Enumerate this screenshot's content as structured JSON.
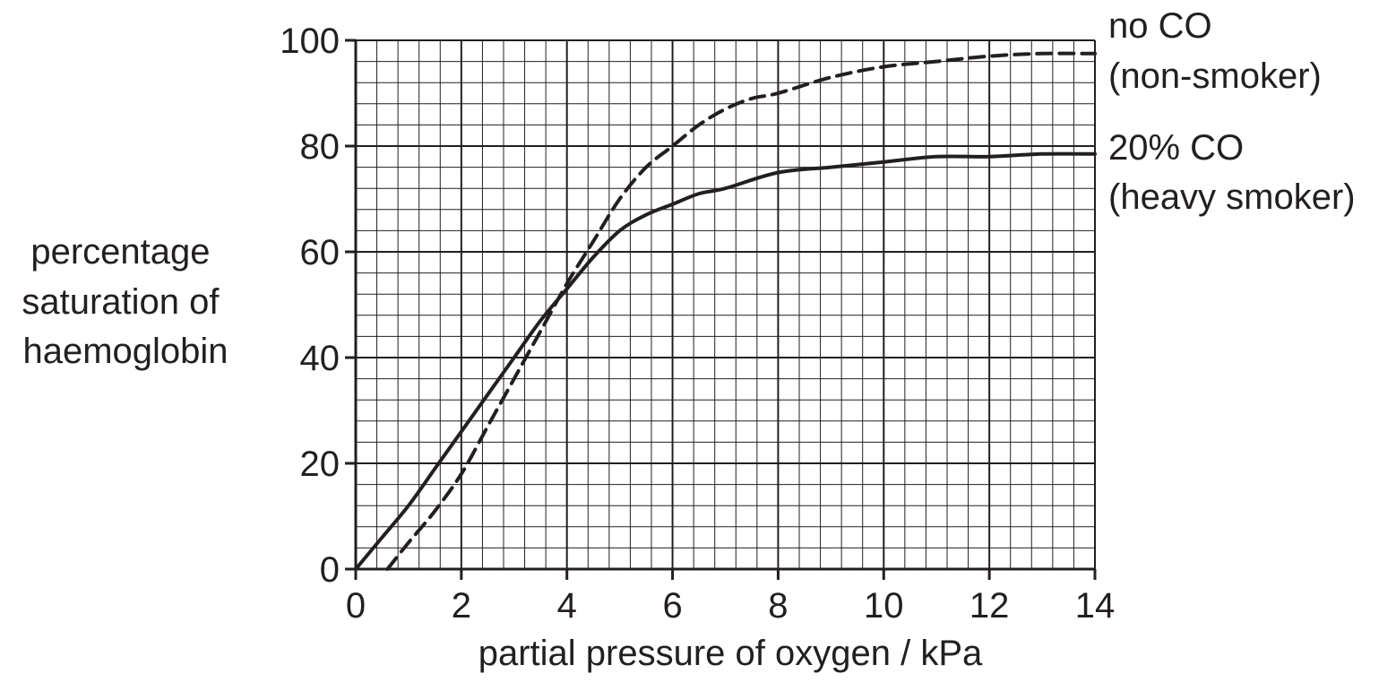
{
  "chart_data": {
    "type": "line",
    "title": "",
    "xlabel": "partial pressure of oxygen / kPa",
    "ylabel_lines": [
      "percentage",
      "saturation of",
      "haemoglobin"
    ],
    "xlim": [
      0,
      14
    ],
    "ylim": [
      0,
      100
    ],
    "x_ticks": [
      0,
      2,
      4,
      6,
      8,
      10,
      12,
      14
    ],
    "y_ticks": [
      0,
      20,
      40,
      60,
      80,
      100
    ],
    "x_tick_labels": [
      "0",
      "2",
      "4",
      "6",
      "8",
      "10",
      "12",
      "14"
    ],
    "y_tick_labels": [
      "0",
      "20",
      "40",
      "60",
      "80",
      "100"
    ],
    "x_minor_step": 0.4,
    "y_minor_step": 4,
    "grid": true,
    "series": [
      {
        "name_lines": [
          "no CO",
          "(non-smoker)"
        ],
        "style": "dashed",
        "x": [
          0.6,
          1.0,
          1.5,
          2.0,
          2.5,
          3.0,
          3.5,
          4.0,
          4.5,
          5.0,
          5.5,
          6.0,
          6.5,
          7.0,
          7.5,
          8.0,
          9.0,
          10.0,
          11.0,
          12.0,
          13.0,
          14.0
        ],
        "y": [
          0,
          5,
          11,
          18,
          27,
          36,
          45,
          54,
          62,
          70,
          76,
          80,
          84,
          87,
          89,
          90,
          93,
          95,
          96,
          97,
          97.5,
          97.5
        ]
      },
      {
        "name_lines": [
          "20% CO",
          "(heavy smoker)"
        ],
        "style": "solid",
        "x": [
          0,
          0.5,
          1.0,
          1.5,
          2.0,
          2.5,
          3.0,
          3.5,
          4.0,
          4.5,
          5.0,
          5.5,
          6.0,
          6.5,
          7.0,
          8.0,
          9.0,
          10.0,
          11.0,
          12.0,
          13.0,
          14.0
        ],
        "y": [
          0,
          6,
          12,
          19,
          26,
          33,
          40,
          47,
          53,
          59,
          64,
          67,
          69,
          71,
          72,
          75,
          76,
          77,
          78,
          78,
          78.5,
          78.5
        ]
      }
    ]
  }
}
